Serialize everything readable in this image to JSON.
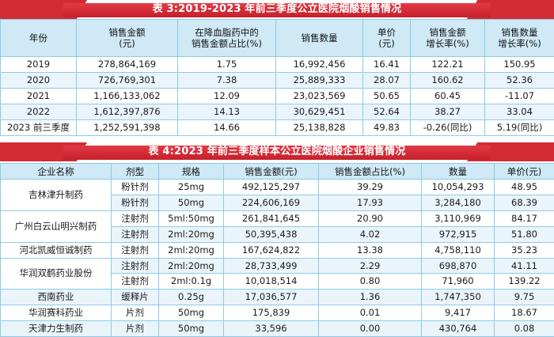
{
  "table1": {
    "title": "表 3:2019-2023 年前三季度公立医院烟酸销售情况",
    "headers": [
      [
        "年份"
      ],
      [
        "销售金额",
        "(元)"
      ],
      [
        "在降血脂药中的",
        "销售金额占比(%)"
      ],
      [
        "销售数量"
      ],
      [
        "单价",
        "(元)"
      ],
      [
        "销售金额",
        "增长率(%)"
      ],
      [
        "销售数量",
        "增长率(%)"
      ]
    ],
    "rows": [
      [
        "2019",
        "278,864,169",
        "1.75",
        "16,992,456",
        "16.41",
        "122.21",
        "150.95"
      ],
      [
        "2020",
        "726,769,301",
        "7.38",
        "25,889,333",
        "28.07",
        "160.62",
        "52.36"
      ],
      [
        "2021",
        "1,166,133,062",
        "12.09",
        "23,023,569",
        "50.65",
        "60.45",
        "-11.07"
      ],
      [
        "2022",
        "1,612,397,876",
        "14.13",
        "30,629,451",
        "52.64",
        "38.27",
        "33.04"
      ],
      [
        "2023 前三季度",
        "1,252,591,398",
        "14.66",
        "25,138,828",
        "49.83",
        "-0.26(同比)",
        "5.19(同比)"
      ]
    ]
  },
  "table2": {
    "title": "表 4:2023 年前三季度样本公立医院烟酸企业销售情况",
    "headers": [
      "企业名称",
      "剂型",
      "规格",
      "销售金额(元)",
      "销售金额占比(%)",
      "数量",
      "单价(元)"
    ],
    "groups": [
      {
        "company": "吉林津升制药",
        "rows": [
          [
            "粉针剂",
            "25mg",
            "492,125,297",
            "39.29",
            "10,054,293",
            "48.95"
          ],
          [
            "粉针剂",
            "50mg",
            "224,606,169",
            "17.93",
            "3,284,180",
            "68.39"
          ]
        ]
      },
      {
        "company": "广州白云山明兴制药",
        "rows": [
          [
            "注射剂",
            "5ml:50mg",
            "261,841,645",
            "20.90",
            "3,110,969",
            "84.17"
          ],
          [
            "注射剂",
            "2ml:20mg",
            "50,395,438",
            "4.02",
            "972,915",
            "51.80"
          ]
        ]
      },
      {
        "company": "河北凯威恒诚制药",
        "rows": [
          [
            "注射剂",
            "2ml:20mg",
            "167,624,822",
            "13.38",
            "4,758,110",
            "35.23"
          ]
        ]
      },
      {
        "company": "华润双鹤药业股份",
        "rows": [
          [
            "注射剂",
            "2ml:20mg",
            "28,733,499",
            "2.29",
            "698,870",
            "41.11"
          ],
          [
            "注射剂",
            "2ml:0.1g",
            "10,018,514",
            "0.80",
            "71,960",
            "139.22"
          ]
        ]
      },
      {
        "company": "西南药业",
        "rows": [
          [
            "缓释片",
            "0.25g",
            "17,036,577",
            "1.36",
            "1,747,350",
            "9.75"
          ]
        ]
      },
      {
        "company": "华润赛科药业",
        "rows": [
          [
            "片剂",
            "50mg",
            "175,839",
            "0.01",
            "9,417",
            "18.67"
          ]
        ]
      },
      {
        "company": "天津力生制药",
        "rows": [
          [
            "片剂",
            "50mg",
            "33,596",
            "0.00",
            "430,764",
            "0.08"
          ]
        ]
      }
    ]
  },
  "colors": {
    "title_red": "#d32b34",
    "header_blue": "#cfe9f6",
    "row_stripe": "#eaf5fb",
    "grid": "#8ccbe8"
  }
}
